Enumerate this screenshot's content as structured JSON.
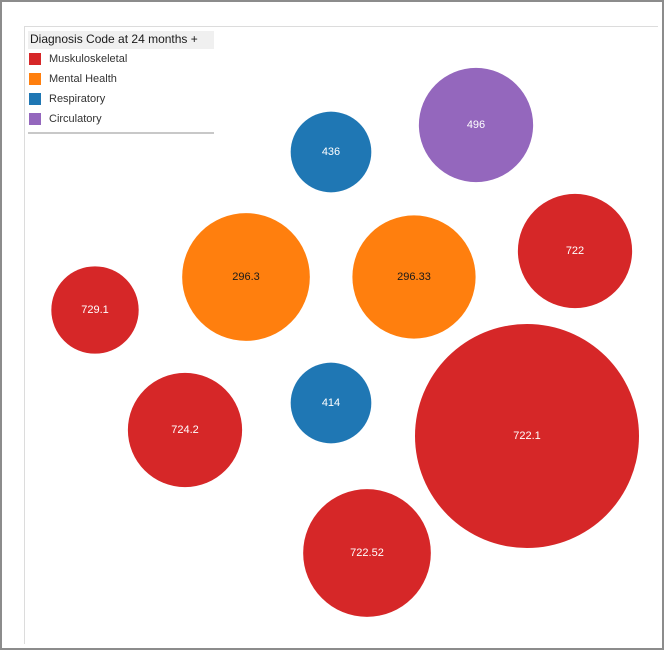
{
  "legend": {
    "title": "Diagnosis Code at 24 months +",
    "items": [
      {
        "label": "Muskuloskeletal",
        "color": "#d62728"
      },
      {
        "label": "Mental Health",
        "color": "#ff7f0e"
      },
      {
        "label": "Respiratory",
        "color": "#1f77b4"
      },
      {
        "label": "Circulatory",
        "color": "#9467bd"
      }
    ]
  },
  "chart_data": {
    "type": "bubble",
    "legend_placement": "top-left",
    "series": [
      {
        "label": "722.1",
        "category": "Muskuloskeletal",
        "size": 1.0
      },
      {
        "label": "722.52",
        "category": "Muskuloskeletal",
        "size": 0.57
      },
      {
        "label": "722",
        "category": "Muskuloskeletal",
        "size": 0.51
      },
      {
        "label": "724.2",
        "category": "Muskuloskeletal",
        "size": 0.51
      },
      {
        "label": "729.1",
        "category": "Muskuloskeletal",
        "size": 0.39
      },
      {
        "label": "296.3",
        "category": "Mental Health",
        "size": 0.57
      },
      {
        "label": "296.33",
        "category": "Mental Health",
        "size": 0.55
      },
      {
        "label": "496",
        "category": "Circulatory",
        "size": 0.51
      },
      {
        "label": "436",
        "category": "Respiratory",
        "size": 0.36
      },
      {
        "label": "414",
        "category": "Respiratory",
        "size": 0.36
      }
    ]
  }
}
